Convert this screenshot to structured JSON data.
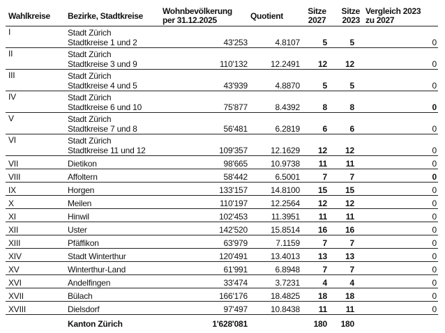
{
  "headers": {
    "wahlkreise": "Wahlkreise",
    "bezirke": "Bezirke, Stadtkreise",
    "wohnbev_1": "Wohnbevölkerung",
    "wohnbev_2": "per 31.12.2025",
    "quotient": "Quotient",
    "sitze2027_1": "Sitze",
    "sitze2027_2": "2027",
    "sitze2023_1": "Sitze",
    "sitze2023_2": "2023",
    "vergleich_1": "Vergleich 2023",
    "vergleich_2": "zu 2027"
  },
  "rows": [
    {
      "wk": "I",
      "line1": "Stadt Zürich",
      "line2": "Stadtkreise 1 und 2",
      "pop": "43'253",
      "quot": "4.8107",
      "s27": "5",
      "s23": "5",
      "diff": "0",
      "diff_bold": false
    },
    {
      "wk": "II",
      "line1": "Stadt Zürich",
      "line2": "Stadtkreise 3 und 9",
      "pop": "110'132",
      "quot": "12.2491",
      "s27": "12",
      "s23": "12",
      "diff": "0",
      "diff_bold": false
    },
    {
      "wk": "III",
      "line1": "Stadt Zürich",
      "line2": "Stadtkreise 4 und 5",
      "pop": "43'939",
      "quot": "4.8870",
      "s27": "5",
      "s23": "5",
      "diff": "0",
      "diff_bold": false
    },
    {
      "wk": "IV",
      "line1": "Stadt Zürich",
      "line2": "Stadtkreise 6 und 10",
      "pop": "75'877",
      "quot": "8.4392",
      "s27": "8",
      "s23": "8",
      "diff": "0",
      "diff_bold": true
    },
    {
      "wk": "V",
      "line1": "Stadt Zürich",
      "line2": "Stadtkreise 7 und 8",
      "pop": "56'481",
      "quot": "6.2819",
      "s27": "6",
      "s23": "6",
      "diff": "0",
      "diff_bold": false
    },
    {
      "wk": "VI",
      "line1": "Stadt Zürich",
      "line2": "Stadtkreise 11 und 12",
      "pop": "109'357",
      "quot": "12.1629",
      "s27": "12",
      "s23": "12",
      "diff": "0",
      "diff_bold": false
    },
    {
      "wk": "VII",
      "line2": "Dietikon",
      "pop": "98'665",
      "quot": "10.9738",
      "s27": "11",
      "s23": "11",
      "diff": "0",
      "diff_bold": false
    },
    {
      "wk": "VIII",
      "line2": "Affoltern",
      "pop": "58'442",
      "quot": "6.5001",
      "s27": "7",
      "s23": "7",
      "diff": "0",
      "diff_bold": true
    },
    {
      "wk": "IX",
      "line2": "Horgen",
      "pop": "133'157",
      "quot": "14.8100",
      "s27": "15",
      "s23": "15",
      "diff": "0",
      "diff_bold": false
    },
    {
      "wk": "X",
      "line2": "Meilen",
      "pop": "110'197",
      "quot": "12.2564",
      "s27": "12",
      "s23": "12",
      "diff": "0",
      "diff_bold": false
    },
    {
      "wk": "XI",
      "line2": "Hinwil",
      "pop": "102'453",
      "quot": "11.3951",
      "s27": "11",
      "s23": "11",
      "diff": "0",
      "diff_bold": false
    },
    {
      "wk": "XII",
      "line2": "Uster",
      "pop": "142'520",
      "quot": "15.8514",
      "s27": "16",
      "s23": "16",
      "diff": "0",
      "diff_bold": false
    },
    {
      "wk": "XIII",
      "line2": "Pfäffikon",
      "pop": "63'979",
      "quot": "7.1159",
      "s27": "7",
      "s23": "7",
      "diff": "0",
      "diff_bold": false
    },
    {
      "wk": "XIV",
      "line2": "Stadt Winterthur",
      "pop": "120'491",
      "quot": "13.4013",
      "s27": "13",
      "s23": "13",
      "diff": "0",
      "diff_bold": false
    },
    {
      "wk": "XV",
      "line2": "Winterthur-Land",
      "pop": "61'991",
      "quot": "6.8948",
      "s27": "7",
      "s23": "7",
      "diff": "0",
      "diff_bold": false
    },
    {
      "wk": "XVI",
      "line2": "Andelfingen",
      "pop": "33'474",
      "quot": "3.7231",
      "s27": "4",
      "s23": "4",
      "diff": "0",
      "diff_bold": false
    },
    {
      "wk": "XVII",
      "line2": "Bülach",
      "pop": "166'176",
      "quot": "18.4825",
      "s27": "18",
      "s23": "18",
      "diff": "0",
      "diff_bold": false
    },
    {
      "wk": "XVIII",
      "line2": "Dielsdorf",
      "pop": "97'497",
      "quot": "10.8438",
      "s27": "11",
      "s23": "11",
      "diff": "0",
      "diff_bold": false
    }
  ],
  "total": {
    "label": "Kanton Zürich",
    "pop": "1'628'081",
    "s27": "180",
    "s23": "180"
  }
}
